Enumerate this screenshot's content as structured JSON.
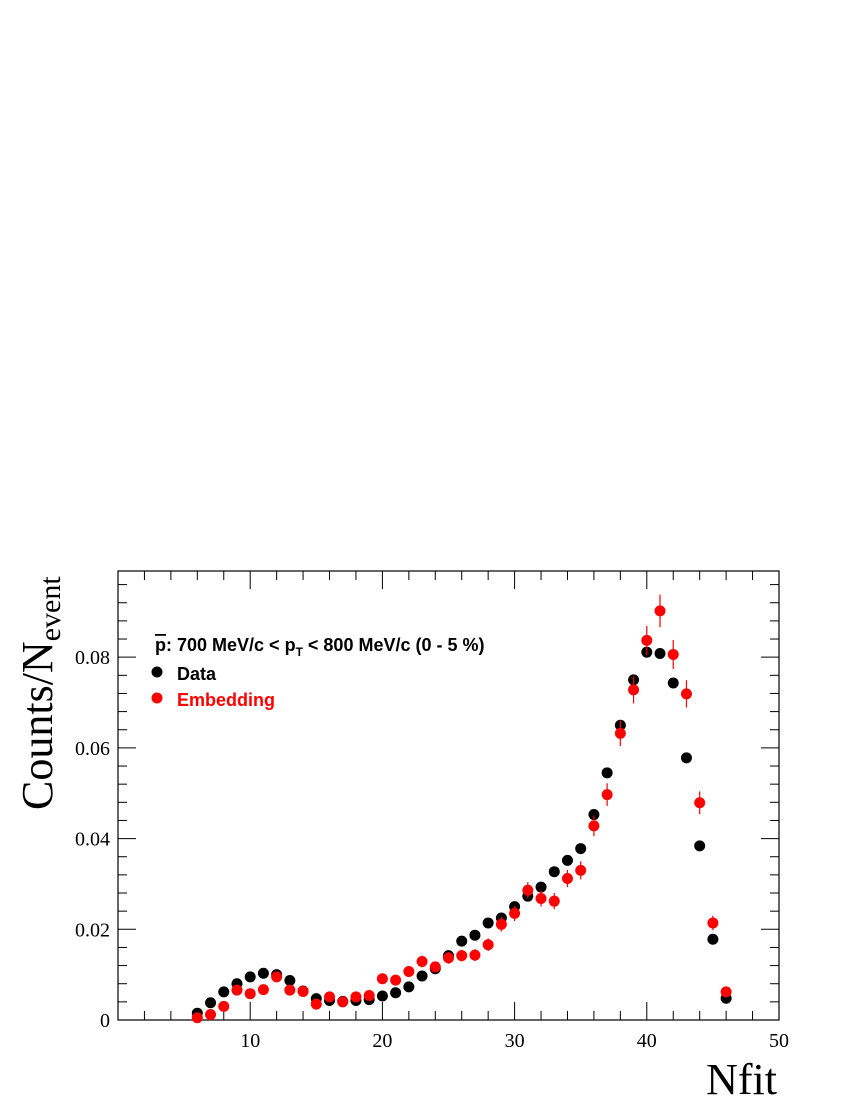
{
  "chart_data": {
    "type": "scatter",
    "title": "",
    "annotation": {
      "prefix": "p",
      "mid": ": 700 MeV/c < p",
      "sub": "T",
      "suffix": " < 800 MeV/c (0 - 5 %)"
    },
    "xlabel": "Nfit",
    "ylabel": {
      "main": "Counts/N",
      "sub": "event"
    },
    "xlim": [
      0,
      50
    ],
    "ylim": [
      0,
      0.099
    ],
    "x_ticks": [
      10,
      20,
      30,
      40,
      50
    ],
    "x_tick_labels": [
      "10",
      "20",
      "30",
      "40",
      "50"
    ],
    "y_ticks": [
      0,
      0.02,
      0.04,
      0.06,
      0.08
    ],
    "y_tick_labels": [
      "0",
      "0.02",
      "0.04",
      "0.06",
      "0.08"
    ],
    "grid": false,
    "legend_position": "top-left",
    "series": [
      {
        "name": "Data",
        "color": "#000000",
        "x": [
          6,
          7,
          8,
          9,
          10,
          11,
          12,
          13,
          14,
          15,
          16,
          17,
          18,
          19,
          20,
          21,
          22,
          23,
          24,
          25,
          26,
          27,
          28,
          29,
          30,
          31,
          32,
          33,
          34,
          35,
          36,
          37,
          38,
          39,
          40,
          41,
          42,
          43,
          44,
          45,
          46
        ],
        "y": [
          0.0015,
          0.0038,
          0.0062,
          0.008,
          0.0095,
          0.0103,
          0.01,
          0.0087,
          0.0064,
          0.0047,
          0.0043,
          0.0041,
          0.0043,
          0.0045,
          0.0053,
          0.006,
          0.0073,
          0.0097,
          0.0113,
          0.0142,
          0.0174,
          0.0187,
          0.0214,
          0.0225,
          0.025,
          0.0273,
          0.0293,
          0.0327,
          0.0352,
          0.0378,
          0.0453,
          0.0545,
          0.065,
          0.075,
          0.0811,
          0.0808,
          0.0743,
          0.0578,
          0.0384,
          0.0178,
          0.0048
        ],
        "yerr": [
          0.0003,
          0.0003,
          0.0003,
          0.0003,
          0.0003,
          0.0003,
          0.0003,
          0.0003,
          0.0003,
          0.0003,
          0.0003,
          0.0003,
          0.0003,
          0.0003,
          0.0003,
          0.0003,
          0.0003,
          0.0003,
          0.0003,
          0.0003,
          0.0003,
          0.0003,
          0.0003,
          0.0003,
          0.0003,
          0.0003,
          0.0003,
          0.0003,
          0.0003,
          0.0003,
          0.0004,
          0.0004,
          0.0004,
          0.0004,
          0.0004,
          0.0004,
          0.0004,
          0.0004,
          0.0004,
          0.0004,
          0.0003
        ]
      },
      {
        "name": "Embedding",
        "color": "#ff0000",
        "x": [
          6,
          7,
          8,
          9,
          10,
          11,
          12,
          13,
          14,
          15,
          16,
          17,
          18,
          19,
          20,
          21,
          22,
          23,
          24,
          25,
          26,
          27,
          28,
          29,
          30,
          31,
          32,
          33,
          34,
          35,
          36,
          37,
          38,
          39,
          40,
          41,
          42,
          43,
          44,
          45,
          46
        ],
        "y": [
          0.0005,
          0.0012,
          0.003,
          0.0066,
          0.0058,
          0.0067,
          0.0095,
          0.0066,
          0.0063,
          0.0035,
          0.0051,
          0.004,
          0.0051,
          0.0054,
          0.0091,
          0.0088,
          0.0107,
          0.0129,
          0.0117,
          0.0137,
          0.0142,
          0.0143,
          0.0166,
          0.0211,
          0.0235,
          0.0286,
          0.0268,
          0.0262,
          0.0312,
          0.033,
          0.0428,
          0.0497,
          0.0632,
          0.0728,
          0.0837,
          0.0902,
          0.0806,
          0.0719,
          0.0479,
          0.0214,
          0.0062
        ],
        "yerr": [
          0.0006,
          0.0008,
          0.0009,
          0.001,
          0.001,
          0.001,
          0.0011,
          0.001,
          0.001,
          0.0009,
          0.001,
          0.0009,
          0.001,
          0.001,
          0.0011,
          0.0011,
          0.0012,
          0.0013,
          0.0012,
          0.0013,
          0.0013,
          0.0013,
          0.0014,
          0.0016,
          0.0017,
          0.0018,
          0.0018,
          0.0018,
          0.0019,
          0.002,
          0.0023,
          0.0025,
          0.0028,
          0.003,
          0.0032,
          0.0036,
          0.0032,
          0.003,
          0.0025,
          0.0016,
          0.0009
        ]
      }
    ]
  }
}
